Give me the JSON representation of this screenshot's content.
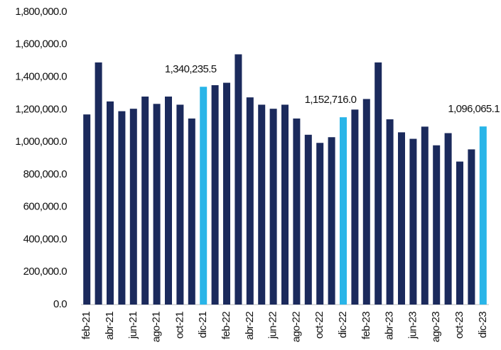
{
  "chart_data": {
    "type": "bar",
    "categories": [
      "feb-21",
      null,
      "abr-21",
      null,
      "jun-21",
      null,
      "ago-21",
      null,
      "oct-21",
      null,
      "dic-21",
      null,
      "feb-22",
      null,
      "abr-22",
      null,
      "jun-22",
      null,
      "ago-22",
      null,
      "oct-22",
      null,
      "dic-22",
      null,
      "feb-23",
      null,
      "abr-23",
      null,
      "jun-23",
      null,
      "ago-23",
      null,
      "oct-23",
      null,
      "dic-23"
    ],
    "values": [
      1170000,
      1490000,
      1250000,
      1190000,
      1205000,
      1280000,
      1235000,
      1280000,
      1230000,
      1145000,
      1340235.5,
      1350000,
      1365000,
      1540000,
      1275000,
      1230000,
      1205000,
      1230000,
      1145000,
      1045000,
      995000,
      1030000,
      1152716.0,
      1200000,
      1265000,
      1490000,
      1140000,
      1060000,
      1020000,
      1095000,
      980000,
      1055000,
      880000,
      955000,
      1096065.1
    ],
    "value_labels": [
      null,
      null,
      null,
      null,
      null,
      null,
      null,
      null,
      null,
      null,
      "1,340,235.5",
      null,
      null,
      null,
      null,
      null,
      null,
      null,
      null,
      null,
      null,
      null,
      "1,152,716.0",
      null,
      null,
      null,
      null,
      null,
      null,
      null,
      null,
      null,
      null,
      null,
      "1,096,065.1"
    ],
    "colors": [
      "#1b2a5c",
      "#1b2a5c",
      "#1b2a5c",
      "#1b2a5c",
      "#1b2a5c",
      "#1b2a5c",
      "#1b2a5c",
      "#1b2a5c",
      "#1b2a5c",
      "#1b2a5c",
      "#29b5e8",
      "#1b2a5c",
      "#1b2a5c",
      "#1b2a5c",
      "#1b2a5c",
      "#1b2a5c",
      "#1b2a5c",
      "#1b2a5c",
      "#1b2a5c",
      "#1b2a5c",
      "#1b2a5c",
      "#1b2a5c",
      "#29b5e8",
      "#1b2a5c",
      "#1b2a5c",
      "#1b2a5c",
      "#1b2a5c",
      "#1b2a5c",
      "#1b2a5c",
      "#1b2a5c",
      "#1b2a5c",
      "#1b2a5c",
      "#1b2a5c",
      "#1b2a5c",
      "#29b5e8"
    ],
    "ylim": [
      0,
      1800000
    ],
    "yticks": [
      {
        "value": 0,
        "label": "0.0"
      },
      {
        "value": 200000,
        "label": "200,000.0"
      },
      {
        "value": 400000,
        "label": "400,000.0"
      },
      {
        "value": 600000,
        "label": "600,000.0"
      },
      {
        "value": 800000,
        "label": "800,000.0"
      },
      {
        "value": 1000000,
        "label": "1,000,000.0"
      },
      {
        "value": 1200000,
        "label": "1,200,000.0"
      },
      {
        "value": 1400000,
        "label": "1,400,000.0"
      },
      {
        "value": 1600000,
        "label": "1,600,000.0"
      },
      {
        "value": 1800000,
        "label": "1,800,000.0"
      }
    ],
    "grid": false
  }
}
